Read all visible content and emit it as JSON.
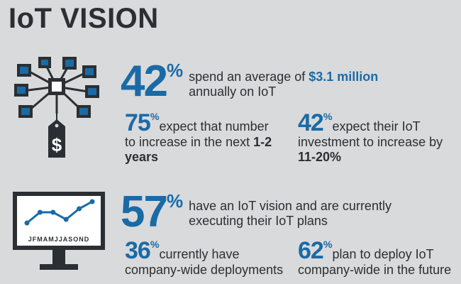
{
  "title": "IoT VISION",
  "colors": {
    "accent": "#1a6aa6",
    "dark": "#2b2f33",
    "background": "#d9dadc"
  },
  "network_icon": {
    "price_tag_symbol": "$"
  },
  "monitor_icon": {
    "month_letters": "JFMAMJJASOND",
    "line_values": [
      2,
      5,
      5,
      3,
      6,
      8
    ]
  },
  "stat1": {
    "number": "42",
    "percent_sign": "%",
    "text_before": "spend an average of ",
    "highlight": "$3.1 million",
    "text_after": "annually on IoT"
  },
  "stat2": {
    "number": "75",
    "percent_sign": "%",
    "text": "expect that number to increase in the next ",
    "bold": "1-2 years"
  },
  "stat3": {
    "number": "42",
    "percent_sign": "%",
    "text": "expect their IoT investment to increase by ",
    "bold": "11-20%"
  },
  "stat4": {
    "number": "57",
    "percent_sign": "%",
    "line1": "have an IoT vision and are currently",
    "line2": "executing their IoT plans"
  },
  "stat5": {
    "number": "36",
    "percent_sign": "%",
    "line1": "currently have",
    "line2": "company-wide deployments"
  },
  "stat6": {
    "number": "62",
    "percent_sign": "%",
    "line1": "plan to deploy IoT",
    "line2": "company-wide in the future"
  }
}
